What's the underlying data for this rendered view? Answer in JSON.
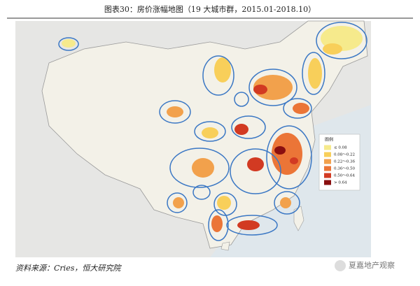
{
  "header": {
    "title": "图表30：房价涨幅地图（19 大城市群，2015.01-2018.10）"
  },
  "map": {
    "legend": {
      "title": "图例",
      "items": [
        {
          "label": "≤ 0.08",
          "color": "#f6ea8c"
        },
        {
          "label": "0.08～0.22",
          "color": "#f8cf5a"
        },
        {
          "label": "0.22～0.36",
          "color": "#f2a14c"
        },
        {
          "label": "0.36～0.50",
          "color": "#eb7537"
        },
        {
          "label": "0.50～0.64",
          "color": "#d23a22"
        },
        {
          "label": "> 0.64",
          "color": "#8a0f10"
        }
      ]
    }
  },
  "footer": {
    "source": "资料来源：Cries，恒大研究院",
    "watermark": "夏嘉地产观察"
  }
}
